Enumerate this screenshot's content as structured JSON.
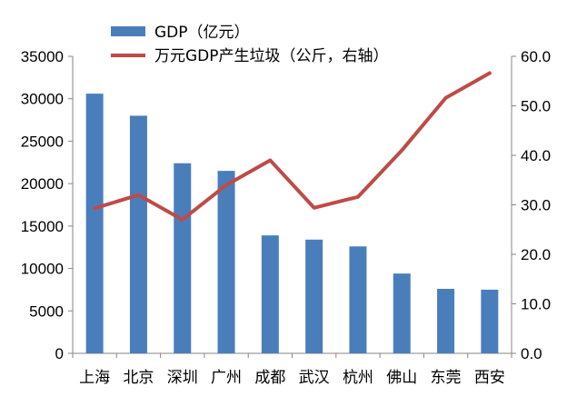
{
  "chart_data": {
    "type": "bar+line",
    "categories": [
      "上海",
      "北京",
      "深圳",
      "广州",
      "成都",
      "武汉",
      "杭州",
      "佛山",
      "东莞",
      "西安"
    ],
    "series": [
      {
        "name": "GDP（亿元）",
        "type": "bar",
        "axis": "left",
        "color": "#4a7ebb",
        "values": [
          30600,
          28000,
          22400,
          21500,
          13900,
          13400,
          12600,
          9400,
          7600,
          7500
        ]
      },
      {
        "name": "万元GDP产生垃圾（公斤，右轴）",
        "type": "line",
        "axis": "right",
        "color": "#be4b48",
        "values": [
          29.3,
          32.0,
          27.0,
          34.0,
          39.0,
          29.4,
          31.6,
          41.0,
          51.6,
          56.6
        ]
      }
    ],
    "y_left": {
      "range": [
        0,
        35000
      ],
      "ticks": [
        "0",
        "5000",
        "10000",
        "15000",
        "20000",
        "25000",
        "30000",
        "35000"
      ]
    },
    "y_right": {
      "range": [
        0,
        60
      ],
      "ticks": [
        "0.0",
        "10.0",
        "20.0",
        "30.0",
        "40.0",
        "50.0",
        "60.0"
      ]
    },
    "legend_position": "top"
  }
}
